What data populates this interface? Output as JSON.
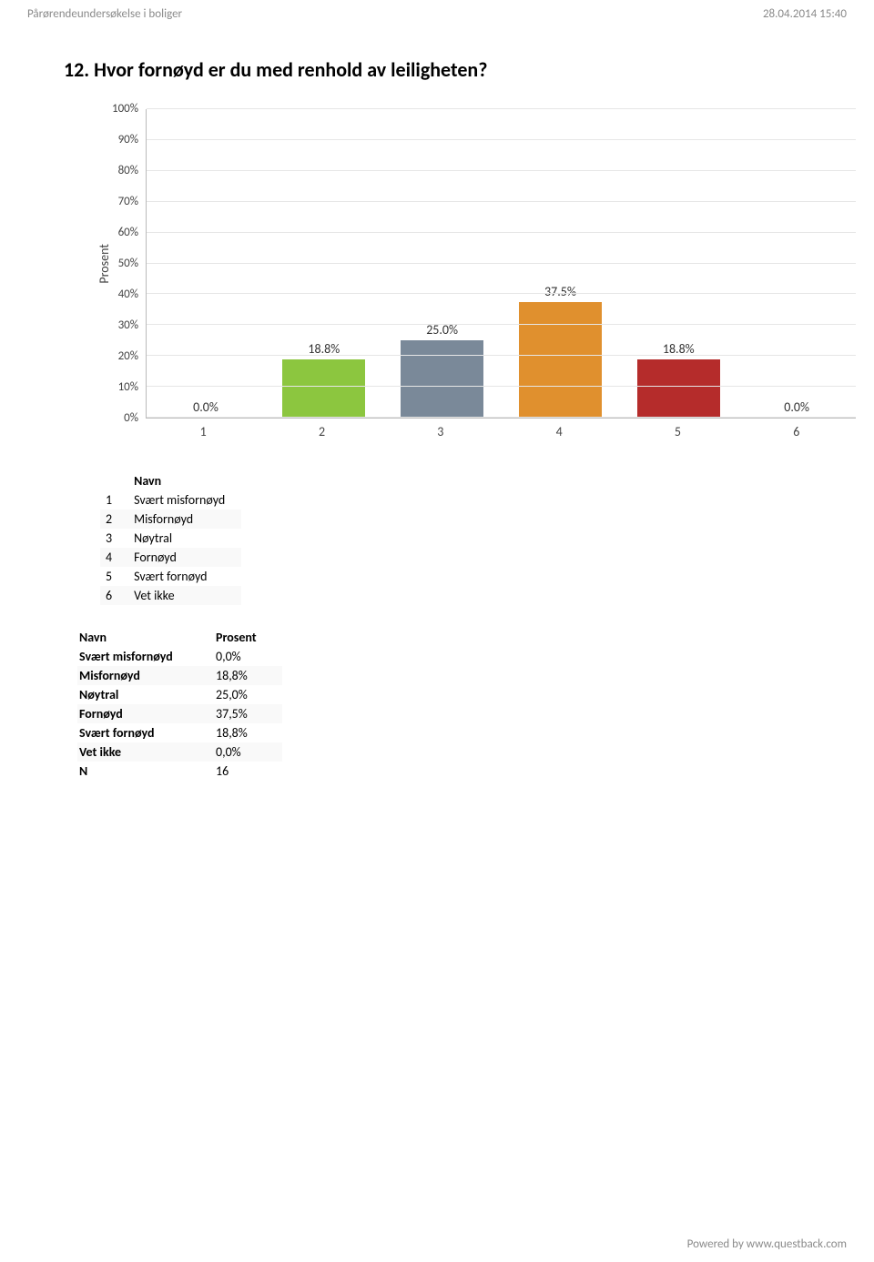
{
  "header": {
    "left": "Pårørendeundersøkelse i boliger",
    "right": "28.04.2014 15:40"
  },
  "question": "12. Hvor fornøyd er du med renhold av leiligheten?",
  "chart": {
    "type": "bar",
    "ylabel": "Prosent",
    "ylim_max": 100,
    "ytick_step": 10,
    "yticks": [
      "100%",
      "90%",
      "80%",
      "70%",
      "60%",
      "50%",
      "40%",
      "30%",
      "20%",
      "10%",
      "0%"
    ],
    "grid_color": "#e6e6e6",
    "axis_color": "#bbbbbb",
    "background_color": "#ffffff",
    "bar_width_ratio": 0.7,
    "label_fontsize": 14,
    "categories": [
      "1",
      "2",
      "3",
      "4",
      "5",
      "6"
    ],
    "values": [
      0.0,
      18.8,
      25.0,
      37.5,
      18.8,
      0.0
    ],
    "value_labels": [
      "0.0%",
      "18.8%",
      "25.0%",
      "37.5%",
      "18.8%",
      "0.0%"
    ],
    "bar_colors": [
      "#5b9bd5",
      "#8cc63f",
      "#7a8999",
      "#e0902e",
      "#b52c2b",
      "#6a6a6a"
    ]
  },
  "legend": {
    "header_index": "",
    "header_name": "Navn",
    "rows": [
      {
        "num": "1",
        "name": "Svært misfornøyd"
      },
      {
        "num": "2",
        "name": "Misfornøyd"
      },
      {
        "num": "3",
        "name": "Nøytral"
      },
      {
        "num": "4",
        "name": "Fornøyd"
      },
      {
        "num": "5",
        "name": "Svært fornøyd"
      },
      {
        "num": "6",
        "name": "Vet ikke"
      }
    ]
  },
  "results": {
    "header_name": "Navn",
    "header_value": "Prosent",
    "rows": [
      {
        "name": "Svært misfornøyd",
        "value": "0,0%"
      },
      {
        "name": "Misfornøyd",
        "value": "18,8%"
      },
      {
        "name": "Nøytral",
        "value": "25,0%"
      },
      {
        "name": "Fornøyd",
        "value": "37,5%"
      },
      {
        "name": "Svært fornøyd",
        "value": "18,8%"
      },
      {
        "name": "Vet ikke",
        "value": "0,0%"
      },
      {
        "name": "N",
        "value": "16"
      }
    ]
  },
  "footer": "Powered by www.questback.com"
}
